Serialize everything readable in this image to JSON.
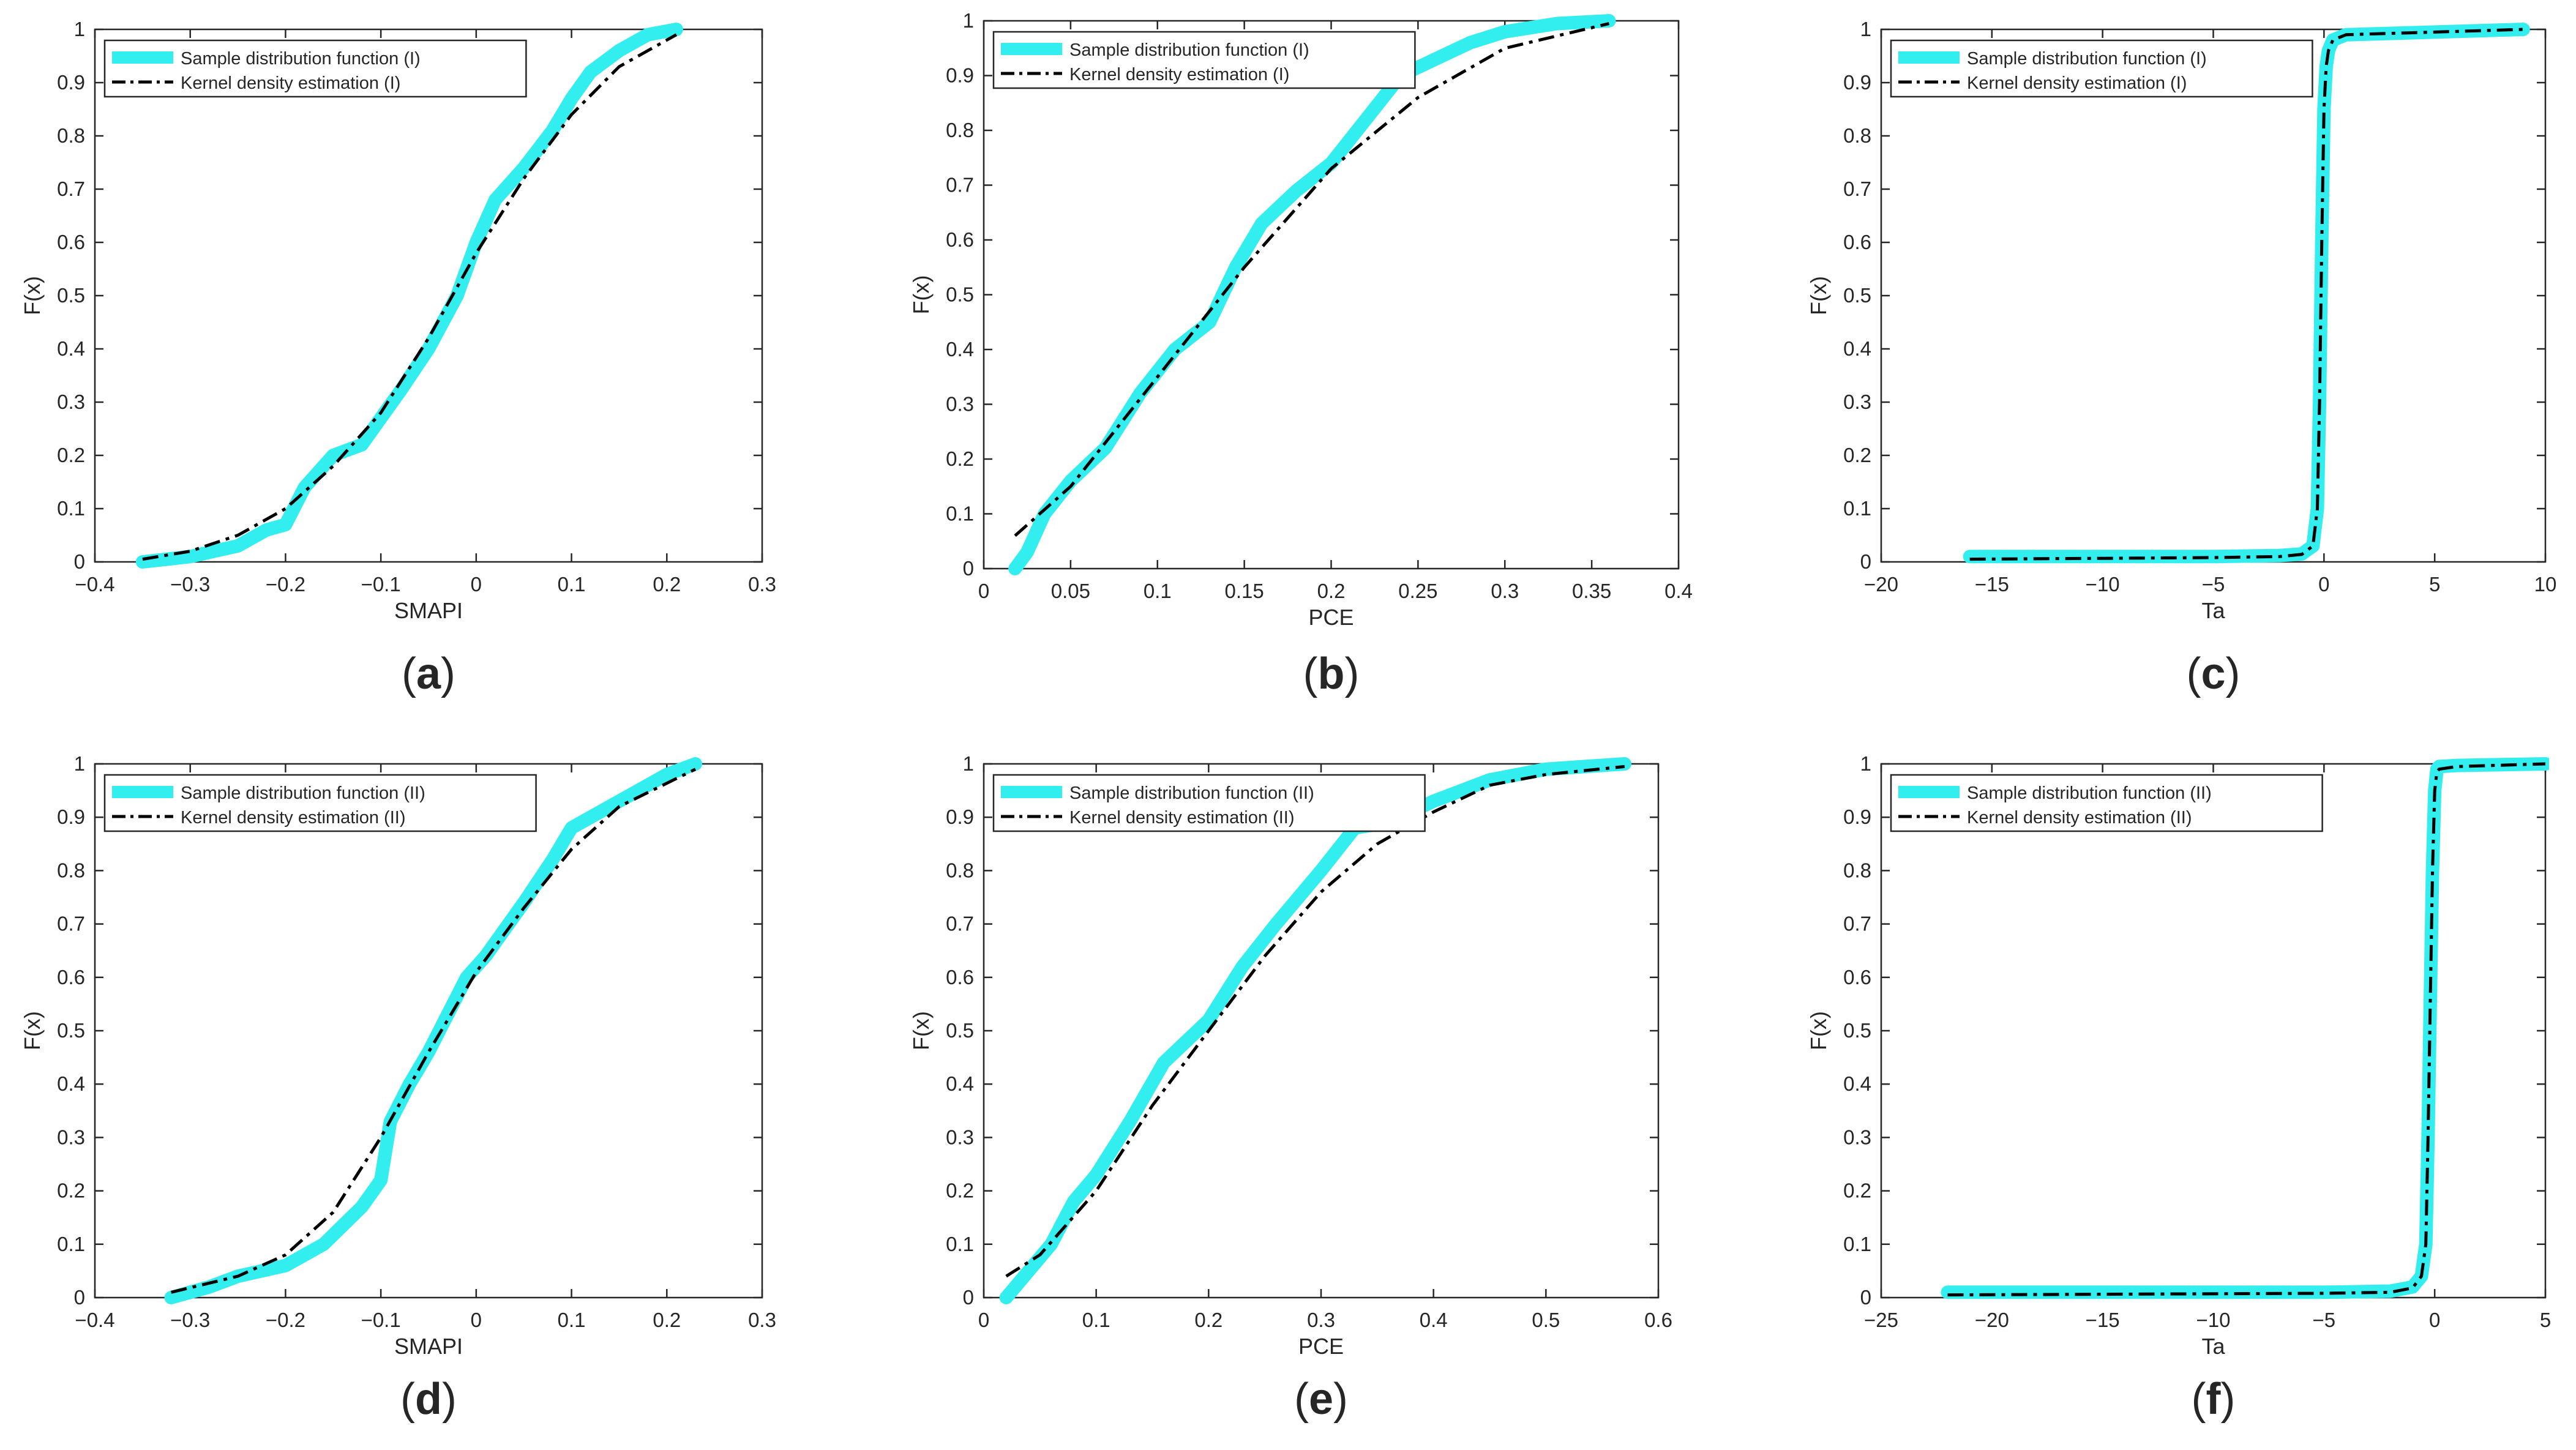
{
  "chart_data": [
    {
      "id": "a",
      "type": "line",
      "caption": "a",
      "xlabel": "SMAPI",
      "ylabel": "F(x)",
      "xlim": [
        -0.4,
        0.3
      ],
      "xticks": [
        -0.4,
        -0.3,
        -0.2,
        -0.1,
        0,
        0.1,
        0.2,
        0.3
      ],
      "xtick_labels": [
        "−0.4",
        "−0.3",
        "−0.2",
        "−0.1",
        "0",
        "0.1",
        "0.2",
        "0.3"
      ],
      "ylim": [
        0,
        1
      ],
      "yticks": [
        0,
        0.1,
        0.2,
        0.3,
        0.4,
        0.5,
        0.6,
        0.7,
        0.8,
        0.9,
        1
      ],
      "ytick_labels": [
        "0",
        "0.1",
        "0.2",
        "0.3",
        "0.4",
        "0.5",
        "0.6",
        "0.7",
        "0.8",
        "0.9",
        "1"
      ],
      "legend_position": "top-left",
      "series": [
        {
          "name": "Sample distribution function (I)",
          "style": "empirical",
          "color": "#33EEEE",
          "x": [
            -0.35,
            -0.3,
            -0.25,
            -0.22,
            -0.2,
            -0.18,
            -0.15,
            -0.12,
            -0.1,
            -0.08,
            -0.05,
            -0.02,
            0,
            0.02,
            0.05,
            0.08,
            0.1,
            0.12,
            0.15,
            0.18,
            0.21
          ],
          "y": [
            0.0,
            0.01,
            0.03,
            0.06,
            0.07,
            0.14,
            0.2,
            0.22,
            0.27,
            0.32,
            0.4,
            0.5,
            0.6,
            0.68,
            0.74,
            0.81,
            0.87,
            0.92,
            0.96,
            0.99,
            1.0
          ]
        },
        {
          "name": "Kernel density estimation (I)",
          "style": "dashdot",
          "color": "#000000",
          "x": [
            -0.35,
            -0.3,
            -0.25,
            -0.2,
            -0.15,
            -0.1,
            -0.05,
            0,
            0.05,
            0.1,
            0.15,
            0.21
          ],
          "y": [
            0.005,
            0.02,
            0.05,
            0.1,
            0.18,
            0.28,
            0.42,
            0.58,
            0.72,
            0.84,
            0.93,
            0.99
          ]
        }
      ]
    },
    {
      "id": "b",
      "type": "line",
      "caption": "b",
      "xlabel": "PCE",
      "ylabel": "F(x)",
      "xlim": [
        0,
        0.4
      ],
      "xticks": [
        0,
        0.05,
        0.1,
        0.15,
        0.2,
        0.25,
        0.3,
        0.35,
        0.4
      ],
      "xtick_labels": [
        "0",
        "0.05",
        "0.1",
        "0.15",
        "0.2",
        "0.25",
        "0.3",
        "0.35",
        "0.4"
      ],
      "ylim": [
        0,
        1
      ],
      "yticks": [
        0,
        0.1,
        0.2,
        0.3,
        0.4,
        0.5,
        0.6,
        0.7,
        0.8,
        0.9,
        1
      ],
      "ytick_labels": [
        "0",
        "0.1",
        "0.2",
        "0.3",
        "0.4",
        "0.5",
        "0.6",
        "0.7",
        "0.8",
        "0.9",
        "1"
      ],
      "legend_position": "top-left",
      "series": [
        {
          "name": "Sample distribution function (I)",
          "style": "empirical",
          "color": "#33EEEE",
          "x": [
            0.018,
            0.025,
            0.035,
            0.05,
            0.07,
            0.09,
            0.11,
            0.13,
            0.145,
            0.16,
            0.18,
            0.2,
            0.22,
            0.24,
            0.26,
            0.28,
            0.3,
            0.33,
            0.36
          ],
          "y": [
            0.0,
            0.03,
            0.1,
            0.16,
            0.22,
            0.32,
            0.4,
            0.45,
            0.55,
            0.63,
            0.69,
            0.74,
            0.82,
            0.9,
            0.93,
            0.96,
            0.98,
            0.995,
            1.0
          ]
        },
        {
          "name": "Kernel density estimation (I)",
          "style": "dashdot",
          "color": "#000000",
          "x": [
            0.018,
            0.05,
            0.1,
            0.15,
            0.2,
            0.25,
            0.3,
            0.36
          ],
          "y": [
            0.06,
            0.15,
            0.35,
            0.55,
            0.73,
            0.86,
            0.95,
            0.995
          ]
        }
      ]
    },
    {
      "id": "c",
      "type": "line",
      "caption": "c",
      "xlabel": "Ta",
      "ylabel": "F(x)",
      "xlim": [
        -20,
        10
      ],
      "xticks": [
        -20,
        -15,
        -10,
        -5,
        0,
        5,
        10
      ],
      "xtick_labels": [
        "−20",
        "−15",
        "−10",
        "−5",
        "0",
        "5",
        "10"
      ],
      "ylim": [
        0,
        1
      ],
      "yticks": [
        0,
        0.1,
        0.2,
        0.3,
        0.4,
        0.5,
        0.6,
        0.7,
        0.8,
        0.9,
        1
      ],
      "ytick_labels": [
        "0",
        "0.1",
        "0.2",
        "0.3",
        "0.4",
        "0.5",
        "0.6",
        "0.7",
        "0.8",
        "0.9",
        "1"
      ],
      "legend_position": "top-left",
      "series": [
        {
          "name": "Sample distribution function (I)",
          "style": "empirical",
          "color": "#33EEEE",
          "x": [
            -16,
            -5,
            -2,
            -1,
            -0.5,
            -0.3,
            -0.2,
            -0.1,
            0,
            0.1,
            0.2,
            0.4,
            1,
            5,
            9
          ],
          "y": [
            0.01,
            0.01,
            0.012,
            0.015,
            0.03,
            0.1,
            0.3,
            0.6,
            0.85,
            0.93,
            0.96,
            0.98,
            0.99,
            0.995,
            1.0
          ]
        },
        {
          "name": "Kernel density estimation (I)",
          "style": "dashdot",
          "color": "#000000",
          "x": [
            -16,
            -5,
            -2,
            -1,
            -0.5,
            -0.3,
            -0.2,
            -0.1,
            0,
            0.1,
            0.2,
            0.4,
            1,
            5,
            9
          ],
          "y": [
            0.005,
            0.008,
            0.01,
            0.014,
            0.03,
            0.1,
            0.3,
            0.6,
            0.85,
            0.93,
            0.96,
            0.98,
            0.99,
            0.995,
            1.0
          ]
        }
      ]
    },
    {
      "id": "d",
      "type": "line",
      "caption": "d",
      "xlabel": "SMAPI",
      "ylabel": "F(x)",
      "xlim": [
        -0.4,
        0.3
      ],
      "xticks": [
        -0.4,
        -0.3,
        -0.2,
        -0.1,
        0,
        0.1,
        0.2,
        0.3
      ],
      "xtick_labels": [
        "−0.4",
        "−0.3",
        "−0.2",
        "−0.1",
        "0",
        "0.1",
        "0.2",
        "0.3"
      ],
      "ylim": [
        0,
        1
      ],
      "yticks": [
        0,
        0.1,
        0.2,
        0.3,
        0.4,
        0.5,
        0.6,
        0.7,
        0.8,
        0.9,
        1
      ],
      "ytick_labels": [
        "0",
        "0.1",
        "0.2",
        "0.3",
        "0.4",
        "0.5",
        "0.6",
        "0.7",
        "0.8",
        "0.9",
        "1"
      ],
      "legend_position": "top-left",
      "series": [
        {
          "name": "Sample distribution function (II)",
          "style": "empirical",
          "color": "#33EEEE",
          "x": [
            -0.32,
            -0.28,
            -0.25,
            -0.2,
            -0.16,
            -0.12,
            -0.1,
            -0.09,
            -0.07,
            -0.05,
            -0.03,
            -0.01,
            0.01,
            0.05,
            0.08,
            0.1,
            0.15,
            0.2,
            0.23
          ],
          "y": [
            0.0,
            0.02,
            0.04,
            0.06,
            0.1,
            0.17,
            0.22,
            0.33,
            0.4,
            0.46,
            0.53,
            0.6,
            0.64,
            0.74,
            0.82,
            0.88,
            0.93,
            0.98,
            1.0
          ]
        },
        {
          "name": "Kernel density estimation (II)",
          "style": "dashdot",
          "color": "#000000",
          "x": [
            -0.32,
            -0.25,
            -0.2,
            -0.15,
            -0.1,
            -0.05,
            0,
            0.05,
            0.1,
            0.15,
            0.23
          ],
          "y": [
            0.01,
            0.04,
            0.08,
            0.16,
            0.3,
            0.46,
            0.61,
            0.73,
            0.84,
            0.92,
            0.99
          ]
        }
      ]
    },
    {
      "id": "e",
      "type": "line",
      "caption": "e",
      "xlabel": "PCE",
      "ylabel": "F(x)",
      "xlim": [
        0,
        0.6
      ],
      "xticks": [
        0,
        0.1,
        0.2,
        0.3,
        0.4,
        0.5,
        0.6
      ],
      "xtick_labels": [
        "0",
        "0.1",
        "0.2",
        "0.3",
        "0.4",
        "0.5",
        "0.6"
      ],
      "ylim": [
        0,
        1
      ],
      "yticks": [
        0,
        0.1,
        0.2,
        0.3,
        0.4,
        0.5,
        0.6,
        0.7,
        0.8,
        0.9,
        1
      ],
      "ytick_labels": [
        "0",
        "0.1",
        "0.2",
        "0.3",
        "0.4",
        "0.5",
        "0.6",
        "0.7",
        "0.8",
        "0.9",
        "1"
      ],
      "legend_position": "top-left",
      "series": [
        {
          "name": "Sample distribution function (II)",
          "style": "empirical",
          "color": "#33EEEE",
          "x": [
            0.02,
            0.04,
            0.06,
            0.08,
            0.1,
            0.13,
            0.16,
            0.2,
            0.23,
            0.26,
            0.3,
            0.33,
            0.36,
            0.4,
            0.45,
            0.5,
            0.57
          ],
          "y": [
            0.0,
            0.05,
            0.1,
            0.18,
            0.23,
            0.33,
            0.44,
            0.52,
            0.62,
            0.7,
            0.8,
            0.88,
            0.89,
            0.93,
            0.97,
            0.99,
            1.0
          ]
        },
        {
          "name": "Kernel density estimation (II)",
          "style": "dashdot",
          "color": "#000000",
          "x": [
            0.02,
            0.05,
            0.1,
            0.15,
            0.2,
            0.25,
            0.3,
            0.35,
            0.4,
            0.45,
            0.5,
            0.57
          ],
          "y": [
            0.04,
            0.08,
            0.2,
            0.36,
            0.5,
            0.64,
            0.76,
            0.85,
            0.91,
            0.96,
            0.98,
            0.995
          ]
        }
      ]
    },
    {
      "id": "f",
      "type": "line",
      "caption": "f",
      "xlabel": "Ta",
      "ylabel": "F(x)",
      "xlim": [
        -25,
        5
      ],
      "xticks": [
        -25,
        -20,
        -15,
        -10,
        -5,
        0,
        5
      ],
      "xtick_labels": [
        "−25",
        "−20",
        "−15",
        "−10",
        "−5",
        "0",
        "5"
      ],
      "ylim": [
        0,
        1
      ],
      "yticks": [
        0,
        0.1,
        0.2,
        0.3,
        0.4,
        0.5,
        0.6,
        0.7,
        0.8,
        0.9,
        1
      ],
      "ytick_labels": [
        "0",
        "0.1",
        "0.2",
        "0.3",
        "0.4",
        "0.5",
        "0.6",
        "0.7",
        "0.8",
        "0.9",
        "1"
      ],
      "legend_position": "top-left",
      "series": [
        {
          "name": "Sample distribution function (II)",
          "style": "empirical",
          "color": "#33EEEE",
          "x": [
            -22,
            -5,
            -2,
            -1,
            -0.6,
            -0.4,
            -0.3,
            -0.2,
            -0.1,
            0,
            0.1,
            0.2,
            1,
            5
          ],
          "y": [
            0.01,
            0.01,
            0.012,
            0.02,
            0.04,
            0.1,
            0.3,
            0.55,
            0.8,
            0.95,
            0.99,
            0.995,
            0.997,
            1.0
          ]
        },
        {
          "name": "Kernel density estimation (II)",
          "style": "dashdot",
          "color": "#000000",
          "x": [
            -22,
            -5,
            -2,
            -1,
            -0.6,
            -0.4,
            -0.3,
            -0.2,
            -0.1,
            0,
            0.1,
            0.2,
            1,
            5
          ],
          "y": [
            0.005,
            0.008,
            0.01,
            0.018,
            0.04,
            0.1,
            0.3,
            0.55,
            0.8,
            0.95,
            0.985,
            0.99,
            0.995,
            1.0
          ]
        }
      ]
    }
  ]
}
